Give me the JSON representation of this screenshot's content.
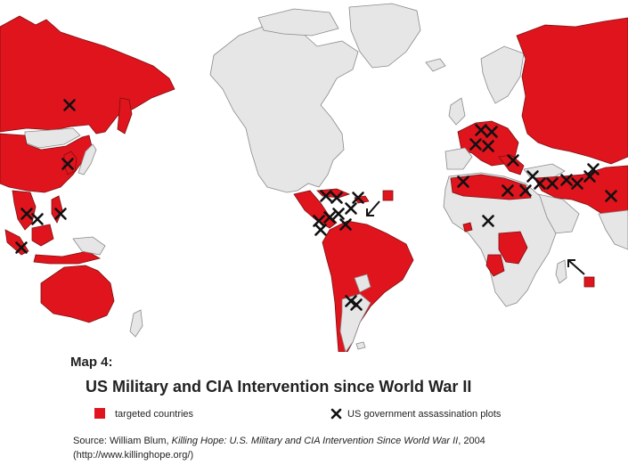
{
  "map": {
    "label": "Map 4:",
    "title": "US Military and CIA Intervention since World War II",
    "colors": {
      "targeted": "#e0141d",
      "land": "#e6e6e6",
      "marker": "#111111"
    }
  },
  "legend": {
    "targeted": "targeted countries",
    "plots": "US government assassination plots"
  },
  "source": {
    "prefix": "Source:  William Blum, ",
    "book_title": "Killing Hope: U.S. Military and CIA Intervention Since World War II",
    "year": ", 2004",
    "url": "(http://www.killinghope.org/)"
  }
}
